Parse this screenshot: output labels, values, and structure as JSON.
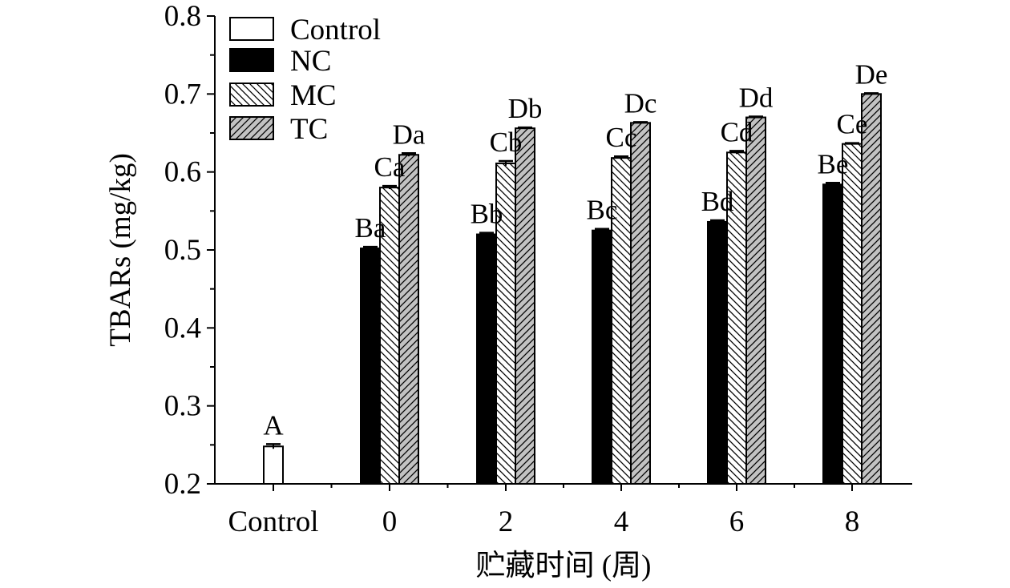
{
  "chart_data": {
    "type": "bar",
    "categories": [
      "Control",
      "0",
      "2",
      "4",
      "6",
      "8"
    ],
    "series": [
      {
        "name": "Control",
        "values": [
          0.248,
          null,
          null,
          null,
          null,
          null
        ],
        "errors": [
          0.003,
          null,
          null,
          null,
          null,
          null
        ],
        "labels": [
          "A",
          null,
          null,
          null,
          null,
          null
        ]
      },
      {
        "name": "NC",
        "values": [
          null,
          0.502,
          0.52,
          0.525,
          0.536,
          0.584
        ],
        "errors": [
          null,
          0.002,
          0.002,
          0.002,
          0.002,
          0.002
        ],
        "labels": [
          null,
          "Ba",
          "Bb",
          "Bc",
          "Bd",
          "Be"
        ]
      },
      {
        "name": "MC",
        "values": [
          null,
          0.58,
          0.611,
          0.618,
          0.625,
          0.636
        ],
        "errors": [
          null,
          0.002,
          0.003,
          0.002,
          0.002,
          0.001
        ],
        "labels": [
          null,
          "Ca",
          "Cb",
          "Cc",
          "Cd",
          "Ce"
        ]
      },
      {
        "name": "TC",
        "values": [
          null,
          0.622,
          0.656,
          0.663,
          0.67,
          0.7
        ],
        "errors": [
          null,
          0.002,
          0.001,
          0.001,
          0.001,
          0.001
        ],
        "labels": [
          null,
          "Da",
          "Db",
          "Dc",
          "Dd",
          "De"
        ]
      }
    ],
    "xlabel": "贮藏时间 (周)",
    "ylabel": "TBARs (mg/kg)",
    "ylim": [
      0.2,
      0.8
    ],
    "yticks": [
      "0.2",
      "0.3",
      "0.4",
      "0.5",
      "0.6",
      "0.7",
      "0.8"
    ],
    "grid": false,
    "legend": {
      "placement": "top-left",
      "entries": [
        "Control",
        "NC",
        "MC",
        "TC"
      ]
    },
    "styles": {
      "Control": {
        "fill": "#ffffff",
        "pattern": "none"
      },
      "NC": {
        "fill": "#000000",
        "pattern": "none"
      },
      "MC": {
        "fill": "#ffffff",
        "pattern": "backslash-hatch"
      },
      "TC": {
        "fill": "#c2c2c2",
        "pattern": "slash-hatch"
      }
    }
  }
}
